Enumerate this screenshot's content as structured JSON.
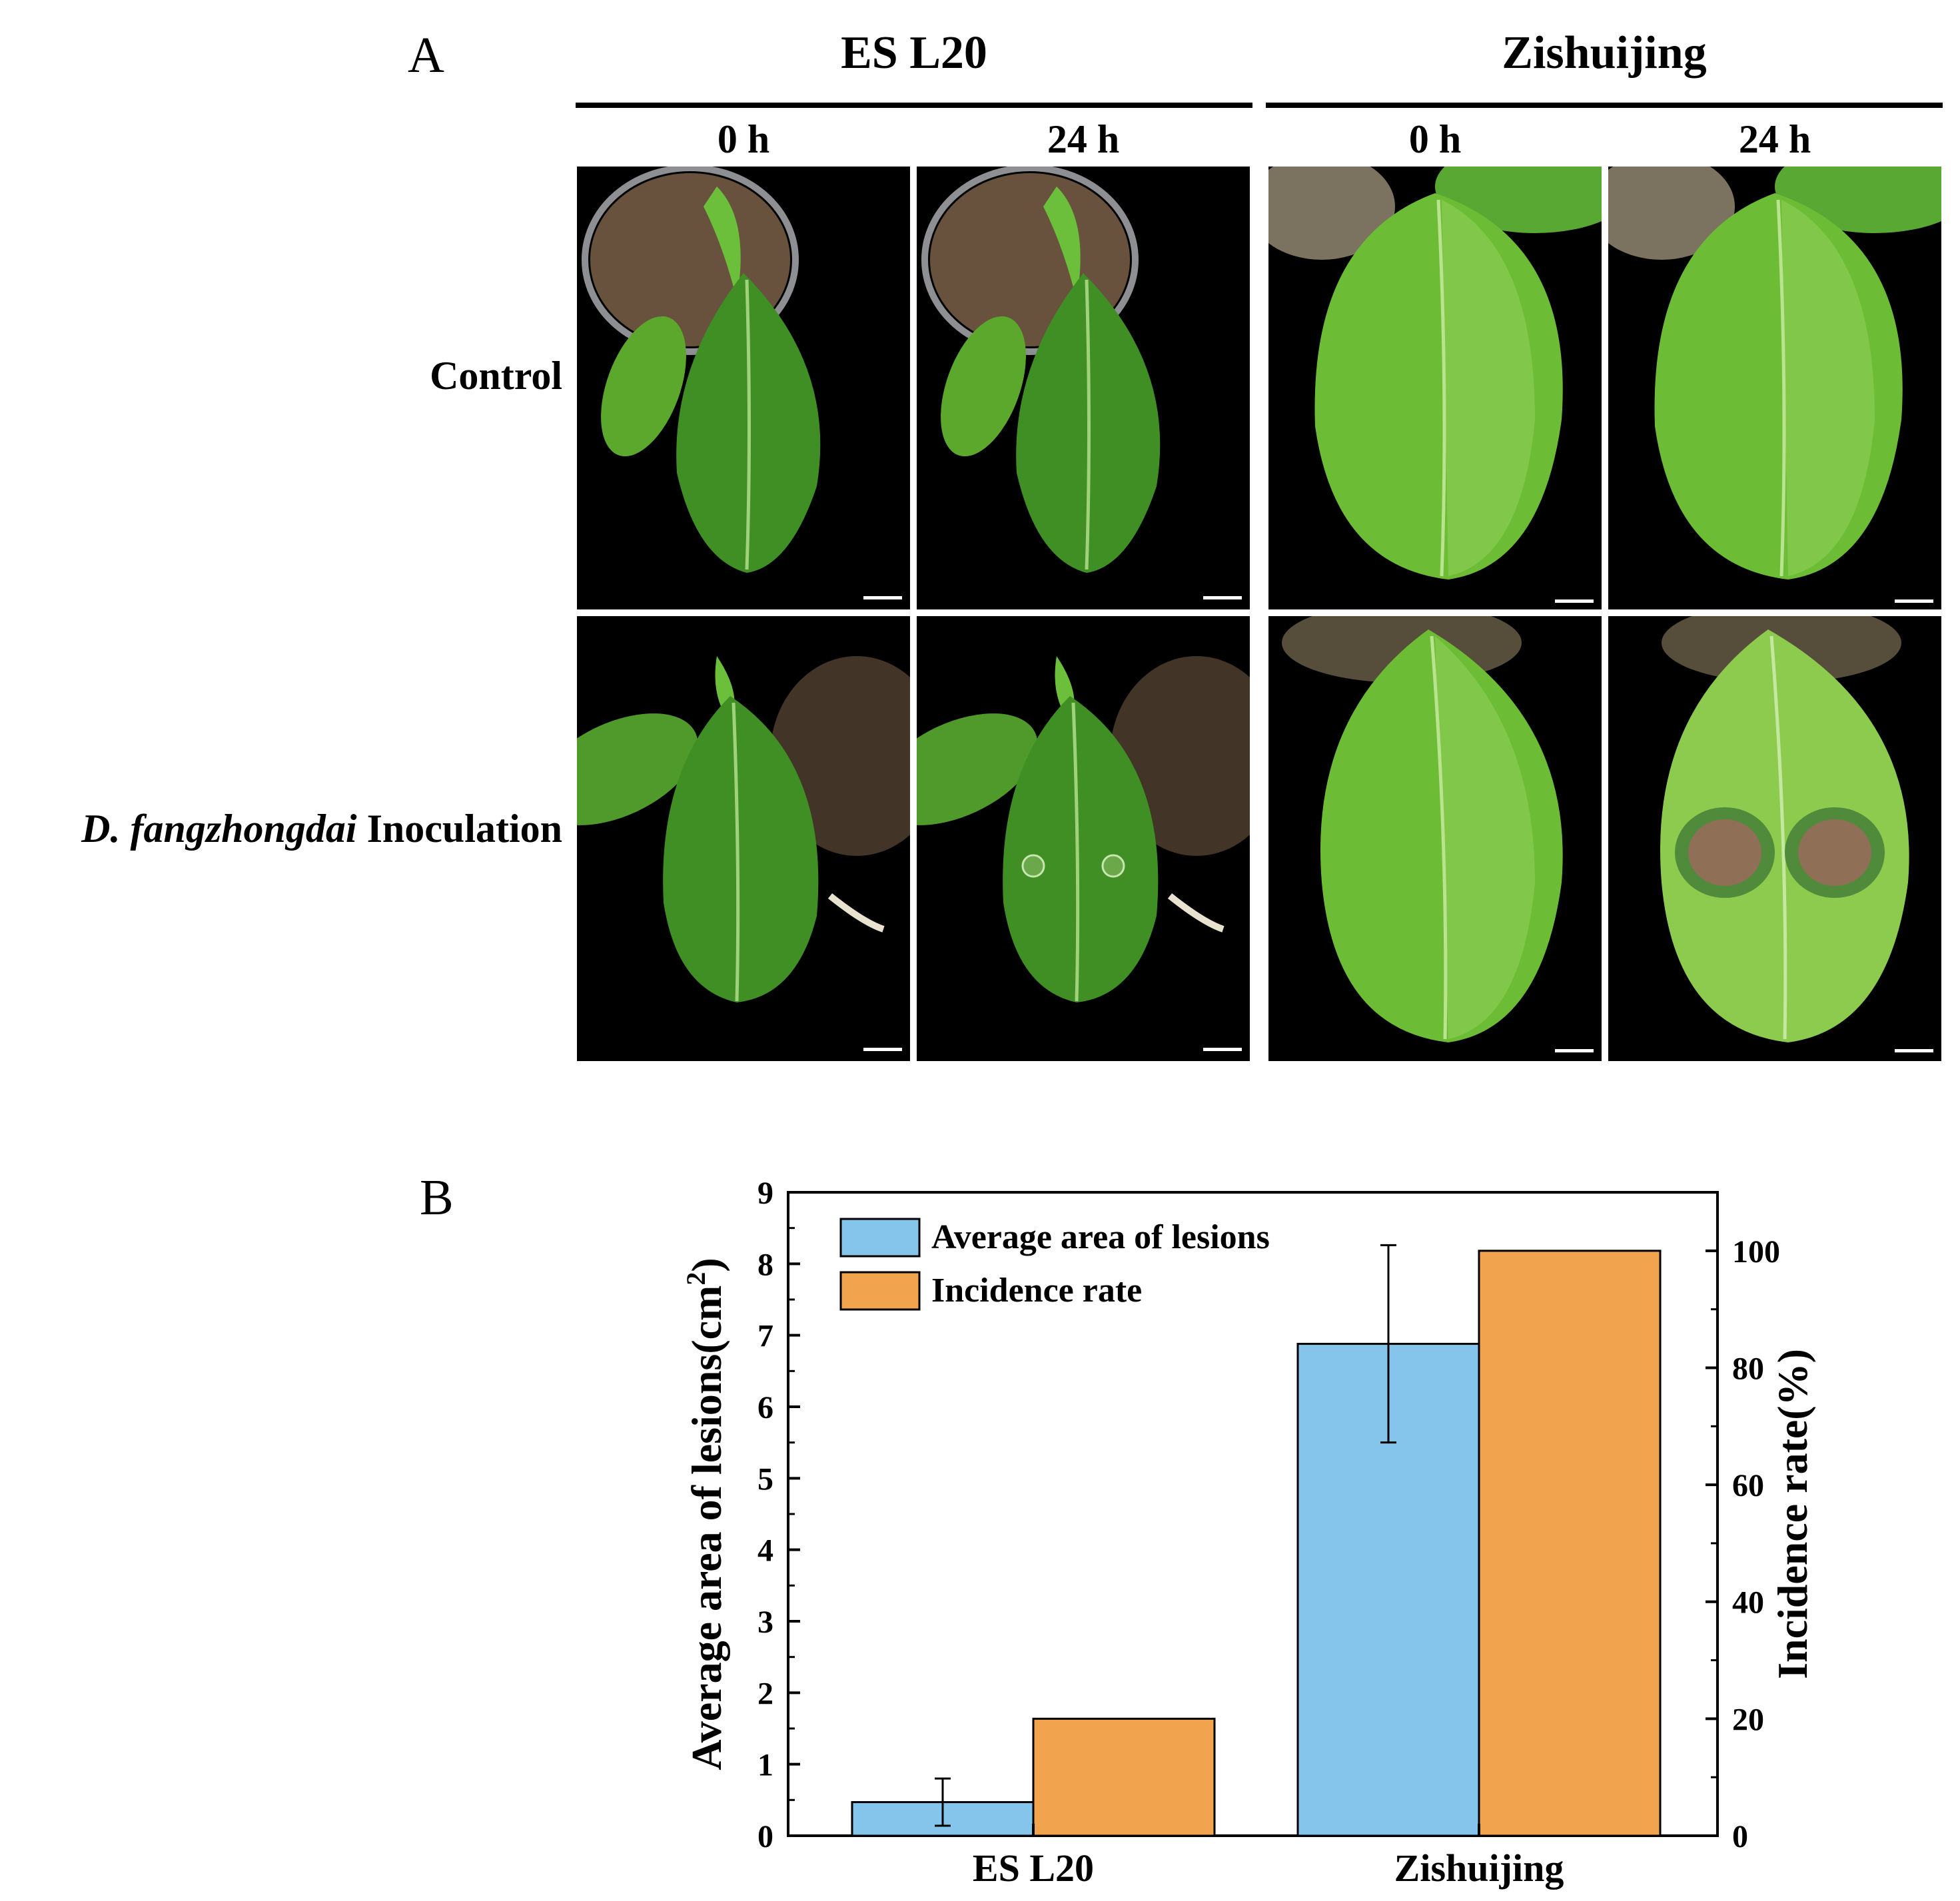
{
  "panel_a": {
    "letter": "A",
    "groups": [
      {
        "name": "ES L20",
        "times": [
          "0 h",
          "24 h"
        ]
      },
      {
        "name": "Zishuijing",
        "times": [
          "0 h",
          "24 h"
        ]
      }
    ],
    "rows": [
      {
        "label": "Control"
      },
      {
        "label_italic": "D. fangzhongdai",
        "label_rest": " Inoculation"
      }
    ]
  },
  "panel_b": {
    "letter": "B"
  },
  "chart_data": {
    "type": "bar",
    "categories": [
      "ES L20",
      "Zishuijing"
    ],
    "series": [
      {
        "name": "Average area of lesions",
        "axis": "left",
        "color": "#85C5EC",
        "values": [
          0.47,
          6.88
        ],
        "error": [
          0.33,
          1.38
        ]
      },
      {
        "name": "Incidence rate",
        "axis": "right",
        "color": "#F2A34E",
        "values": [
          20,
          100
        ]
      }
    ],
    "ylabel_left": "Average area of lesions(cm",
    "ylabel_left_sup": "2",
    "ylabel_left_close": ")",
    "ylabel_right": "Incidence rate(%)",
    "ylim_left": [
      0,
      9
    ],
    "ylim_right": [
      0,
      110
    ],
    "yticks_left": [
      "0",
      "1",
      "2",
      "3",
      "4",
      "5",
      "6",
      "7",
      "8",
      "9"
    ],
    "yticks_right": [
      "0",
      "20",
      "40",
      "60",
      "80",
      "100"
    ],
    "legend_position": "top-left",
    "grid": false
  }
}
